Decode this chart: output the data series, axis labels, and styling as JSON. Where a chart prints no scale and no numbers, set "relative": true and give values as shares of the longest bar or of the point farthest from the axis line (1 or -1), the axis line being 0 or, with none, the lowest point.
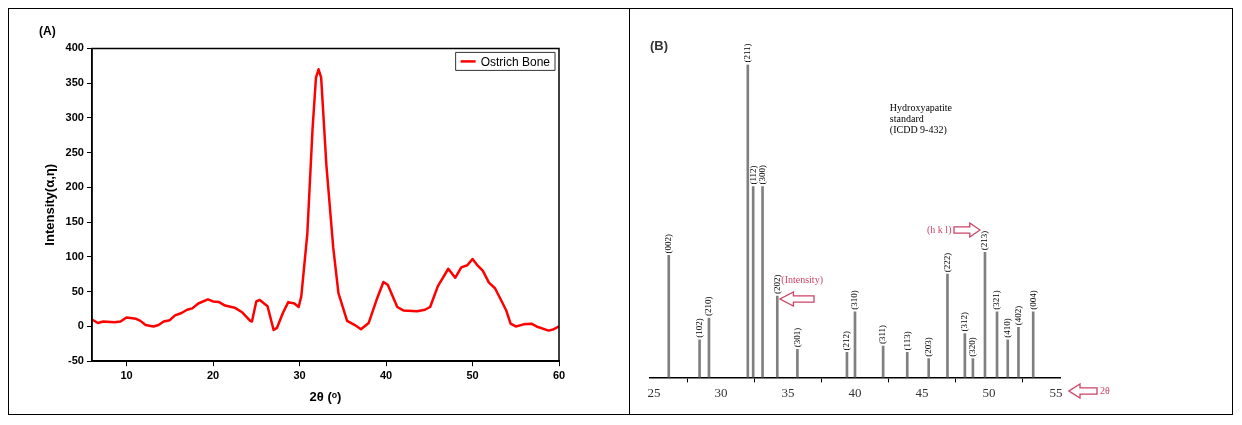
{
  "chart_data": [
    {
      "type": "line",
      "title": "(A)",
      "xlabel": "2θ (ᵒ)",
      "ylabel": "Intensity(α,η)",
      "legend": "top right",
      "xlim": [
        6,
        60
      ],
      "xticks": [
        10,
        20,
        30,
        40,
        50,
        60
      ],
      "ylim": [
        -50,
        400
      ],
      "yticks": [
        -50,
        0,
        50,
        100,
        150,
        200,
        250,
        300,
        350,
        400
      ],
      "x": [
        6,
        6.7,
        7.3,
        8.6,
        9.3,
        10,
        11.1,
        11.6,
        12.2,
        13.1,
        13.7,
        14.3,
        15,
        15.6,
        16.3,
        17,
        17.6,
        18.3,
        19.4,
        20,
        20.7,
        21.4,
        22.5,
        23.4,
        24.3,
        24.5,
        25,
        25.4,
        26.3,
        27,
        27.4,
        28.1,
        28.7,
        29.4,
        29.9,
        30.2,
        30.9,
        31.5,
        31.9,
        32.2,
        32.5,
        33.1,
        33.9,
        34.5,
        35.5,
        36.4,
        37.1,
        38,
        38.9,
        39.7,
        40.2,
        41.3,
        42,
        43.6,
        44.5,
        45.1,
        46,
        47.2,
        48,
        48.7,
        49.4,
        50,
        50.5,
        51.2,
        51.9,
        52.6,
        53.5,
        53.9,
        54.4,
        55,
        55.9,
        56.8,
        57.4,
        58.8,
        59.4,
        60
      ],
      "series": [
        {
          "name": "Ostrich Bone",
          "color": "#ff0000",
          "values": [
            10,
            5,
            7,
            6,
            7,
            13,
            11,
            8,
            2,
            0,
            2,
            7,
            9,
            16,
            19,
            24,
            26,
            33,
            39,
            36,
            35,
            30,
            27,
            20,
            8,
            7,
            36,
            38,
            29,
            -5,
            -2,
            20,
            35,
            33,
            28,
            43,
            133,
            283,
            358,
            370,
            358,
            233,
            113,
            48,
            8,
            2,
            -4,
            5,
            38,
            64,
            60,
            28,
            23,
            22,
            24,
            28,
            58,
            83,
            70,
            85,
            88,
            97,
            89,
            80,
            63,
            55,
            33,
            23,
            4,
            0,
            3,
            4,
            0,
            -6,
            -4,
            0
          ]
        }
      ]
    },
    {
      "type": "bar",
      "title": "(B)",
      "xlabel": "2θ",
      "ylabel": "(Intensity)",
      "relative": true,
      "color": "#808080",
      "xlim": [
        24.7,
        55.3
      ],
      "xticks": [
        25,
        30,
        35,
        40,
        45,
        50,
        55
      ],
      "x": [
        26.1,
        28.4,
        29.1,
        32.0,
        32.4,
        33.1,
        34.2,
        35.7,
        39.4,
        40.0,
        42.1,
        43.9,
        45.5,
        46.9,
        48.2,
        48.8,
        49.7,
        50.6,
        51.4,
        52.2,
        53.3
      ],
      "values": [
        0.39,
        0.12,
        0.19,
        1,
        0.61,
        0.61,
        0.26,
        0.09,
        0.08,
        0.21,
        0.1,
        0.08,
        0.06,
        0.33,
        0.14,
        0.06,
        0.4,
        0.21,
        0.12,
        0.16,
        0.21
      ],
      "annotations": [
        "Hydroxyapatite standard (ICDD 9-432)",
        "(h k l)",
        {
          "text": "(002)",
          "x": 26.1,
          "y": 0.39
        },
        {
          "text": "(102)",
          "x": 28.4,
          "y": 0.12
        },
        {
          "text": "(210)",
          "x": 29.1,
          "y": 0.19
        },
        {
          "text": "(211)",
          "x": 32.0,
          "y": 1
        },
        {
          "text": "(112)",
          "x": 32.4,
          "y": 0.61
        },
        {
          "text": "(300)",
          "x": 33.1,
          "y": 0.61
        },
        {
          "text": "(202)",
          "x": 34.2,
          "y": 0.26
        },
        {
          "text": "(301)",
          "x": 35.7,
          "y": 0.09
        },
        {
          "text": "(212)",
          "x": 39.4,
          "y": 0.08
        },
        {
          "text": "(310)",
          "x": 40.0,
          "y": 0.21
        },
        {
          "text": "(311)",
          "x": 42.1,
          "y": 0.1
        },
        {
          "text": "(113)",
          "x": 43.9,
          "y": 0.08
        },
        {
          "text": "(203)",
          "x": 45.5,
          "y": 0.06
        },
        {
          "text": "(222)",
          "x": 46.9,
          "y": 0.33
        },
        {
          "text": "(312)",
          "x": 48.2,
          "y": 0.14
        },
        {
          "text": "(320)",
          "x": 48.8,
          "y": 0.06
        },
        {
          "text": "(213)",
          "x": 49.7,
          "y": 0.4
        },
        {
          "text": "(321)",
          "x": 50.6,
          "y": 0.21
        },
        {
          "text": "(410)",
          "x": 51.4,
          "y": 0.12
        },
        {
          "text": "(402)",
          "x": 52.2,
          "y": 0.16
        },
        {
          "text": "(004)",
          "x": 53.3,
          "y": 0.21
        }
      ]
    }
  ]
}
